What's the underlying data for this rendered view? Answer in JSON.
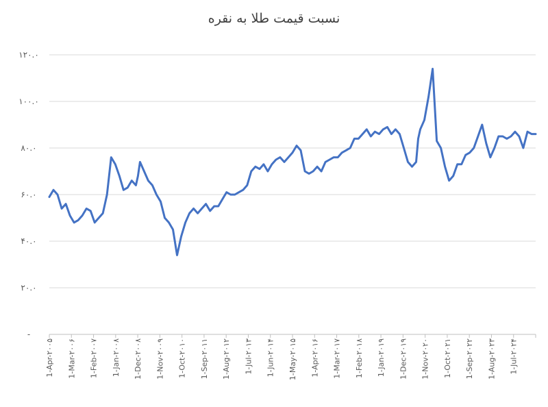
{
  "chart_data": {
    "type": "line",
    "title": "نسبت قیمت طلا به نقره",
    "xlabel": "",
    "ylabel": "",
    "ylim": [
      0,
      120
    ],
    "y_ticks": [
      0,
      20,
      40,
      60,
      80,
      100,
      120
    ],
    "y_tick_labels": [
      "-",
      "۲۰.۰",
      "۴۰.۰",
      "۶۰.۰",
      "۸۰.۰",
      "۱۰۰.۰",
      "۱۲۰.۰"
    ],
    "x_tick_labels": [
      "1-Apr-۲۰۰۵",
      "1-Mar-۲۰۰۶",
      "1-Feb-۲۰۰۷",
      "1-Jan-۲۰۰۸",
      "1-Dec-۲۰۰۸",
      "1-Nov-۲۰۰۹",
      "1-Oct-۲۰۱۰",
      "1-Sep-۲۰۱۱",
      "1-Aug-۲۰۱۲",
      "1-Jul-۲۰۱۳",
      "1-Jun-۲۰۱۴",
      "1-May-۲۰۱۵",
      "1-Apr-۲۰۱۶",
      "1-Mar-۲۰۱۷",
      "1-Feb-۲۰۱۸",
      "1-Jan-۲۰۱۹",
      "1-Dec-۲۰۱۹",
      "1-Nov-۲۰۲۰",
      "1-Oct-۲۰۲۱",
      "1-Sep-۲۰۲۲",
      "1-Aug-۲۰۲۳",
      "1-Jul-۲۰۲۴"
    ],
    "grid": true,
    "legend": "none",
    "series": [
      {
        "color": "#4472c4",
        "x": [
          "2005-04",
          "2005-06",
          "2005-08",
          "2005-10",
          "2005-12",
          "2006-02",
          "2006-04",
          "2006-06",
          "2006-08",
          "2006-10",
          "2006-12",
          "2007-02",
          "2007-04",
          "2007-06",
          "2007-08",
          "2007-10",
          "2007-12",
          "2008-02",
          "2008-04",
          "2008-06",
          "2008-08",
          "2008-10",
          "2008-11",
          "2008-12",
          "2009-02",
          "2009-04",
          "2009-06",
          "2009-08",
          "2009-10",
          "2009-12",
          "2010-02",
          "2010-04",
          "2010-06",
          "2010-08",
          "2010-10",
          "2010-12",
          "2011-02",
          "2011-04",
          "2011-06",
          "2011-08",
          "2011-10",
          "2011-12",
          "2012-02",
          "2012-04",
          "2012-06",
          "2012-08",
          "2012-10",
          "2012-12",
          "2013-02",
          "2013-04",
          "2013-06",
          "2013-08",
          "2013-10",
          "2013-12",
          "2014-02",
          "2014-04",
          "2014-06",
          "2014-08",
          "2014-10",
          "2014-12",
          "2015-02",
          "2015-04",
          "2015-06",
          "2015-08",
          "2015-10",
          "2015-12",
          "2016-02",
          "2016-04",
          "2016-06",
          "2016-08",
          "2016-10",
          "2016-12",
          "2017-02",
          "2017-04",
          "2017-06",
          "2017-08",
          "2017-10",
          "2017-12",
          "2018-02",
          "2018-04",
          "2018-06",
          "2018-08",
          "2018-10",
          "2018-12",
          "2019-02",
          "2019-04",
          "2019-06",
          "2019-08",
          "2019-10",
          "2019-12",
          "2020-02",
          "2020-03",
          "2020-04",
          "2020-06",
          "2020-08",
          "2020-10",
          "2020-12",
          "2021-02",
          "2021-04",
          "2021-06",
          "2021-08",
          "2021-10",
          "2021-12",
          "2022-02",
          "2022-04",
          "2022-06",
          "2022-08",
          "2022-10",
          "2022-12",
          "2023-02",
          "2023-04",
          "2023-06",
          "2023-08",
          "2023-10",
          "2023-12",
          "2024-02",
          "2024-04",
          "2024-06",
          "2024-08",
          "2024-10",
          "2024-12"
        ],
        "values": [
          59,
          62,
          60,
          54,
          56,
          51,
          48,
          49,
          51,
          54,
          53,
          48,
          50,
          52,
          60,
          76,
          73,
          68,
          62,
          63,
          66,
          64,
          68,
          74,
          70,
          66,
          64,
          60,
          57,
          50,
          48,
          45,
          34,
          42,
          48,
          52,
          54,
          52,
          54,
          56,
          53,
          55,
          55,
          58,
          61,
          60,
          60,
          61,
          62,
          64,
          70,
          72,
          71,
          73,
          70,
          73,
          75,
          76,
          74,
          76,
          78,
          81,
          79,
          70,
          69,
          70,
          72,
          70,
          74,
          75,
          76,
          76,
          78,
          79,
          80,
          84,
          84,
          86,
          88,
          85,
          87,
          86,
          88,
          89,
          86,
          88,
          86,
          80,
          74,
          72,
          74,
          84,
          88,
          92,
          102,
          114,
          83,
          80,
          72,
          66,
          68,
          73,
          73,
          77,
          78,
          80,
          85,
          90,
          82,
          76,
          80,
          85,
          85,
          84,
          85,
          87,
          85,
          80,
          87,
          86,
          86
        ]
      }
    ]
  }
}
